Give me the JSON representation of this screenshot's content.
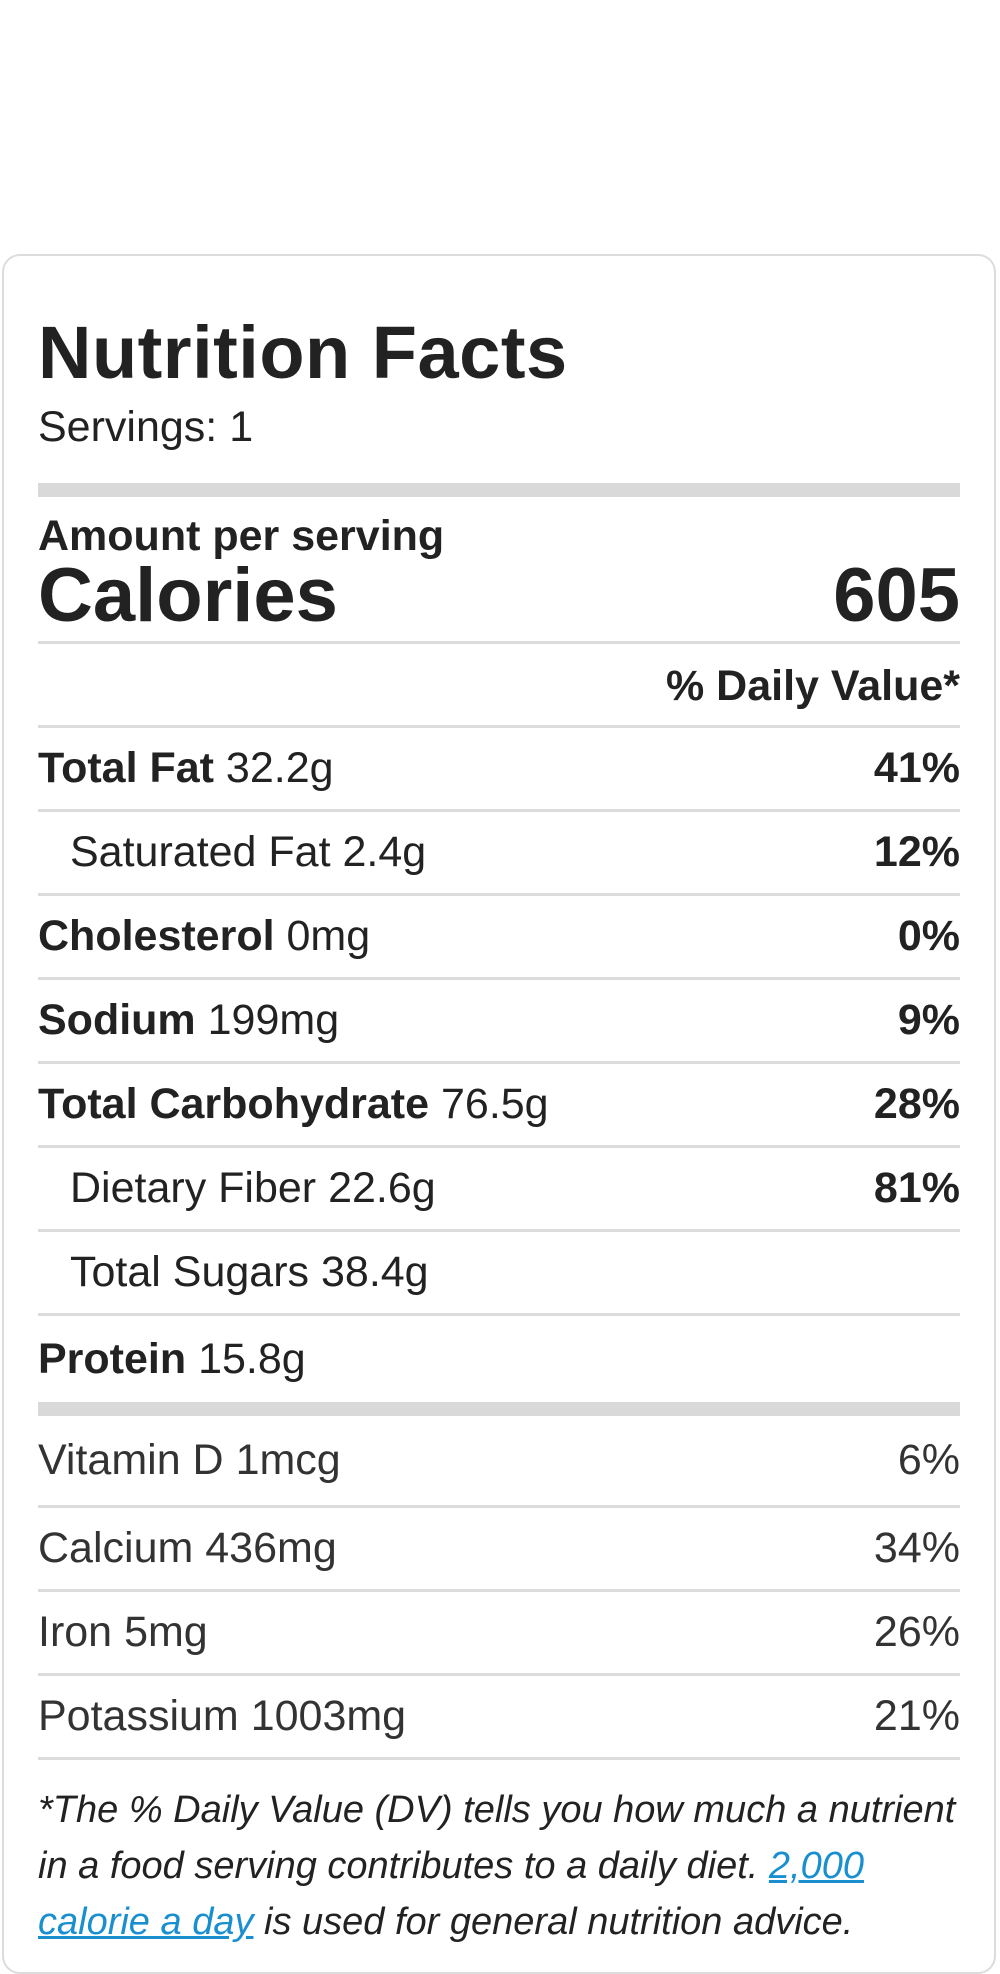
{
  "label": {
    "title": "Nutrition Facts",
    "servings": "Servings: 1",
    "amount_per_serving": "Amount per serving",
    "calories_label": "Calories",
    "calories_value": "605",
    "daily_value_header": "% Daily Value*"
  },
  "nutrients": [
    {
      "name": "Total Fat",
      "amount": "32.2g",
      "dv": "41%"
    },
    {
      "name": "Saturated Fat",
      "amount": "2.4g",
      "dv": "12%"
    },
    {
      "name": "Cholesterol",
      "amount": "0mg",
      "dv": "0%"
    },
    {
      "name": "Sodium",
      "amount": "199mg",
      "dv": "9%"
    },
    {
      "name": "Total Carbohydrate",
      "amount": "76.5g",
      "dv": "28%"
    },
    {
      "name": "Dietary Fiber",
      "amount": "22.6g",
      "dv": "81%"
    },
    {
      "name": "Total Sugars",
      "amount": "38.4g",
      "dv": ""
    },
    {
      "name": "Protein",
      "amount": "15.8g",
      "dv": ""
    }
  ],
  "vitamins": [
    {
      "name": "Vitamin D",
      "amount": "1mcg",
      "dv": "6%"
    },
    {
      "name": "Calcium",
      "amount": "436mg",
      "dv": "34%"
    },
    {
      "name": "Iron",
      "amount": "5mg",
      "dv": "26%"
    },
    {
      "name": "Potassium",
      "amount": "1003mg",
      "dv": "21%"
    }
  ],
  "footnote": {
    "text_before": "*The % Daily Value (DV) tells you how much a nutrient in a food serving contributes to a daily diet. ",
    "link": "2,000 calorie a day",
    "text_after": " is used for general nutrition advice."
  },
  "colors": {
    "border": "#dcdcdc",
    "thick_bar": "#d9d9d9",
    "link": "#1a8fd0"
  }
}
